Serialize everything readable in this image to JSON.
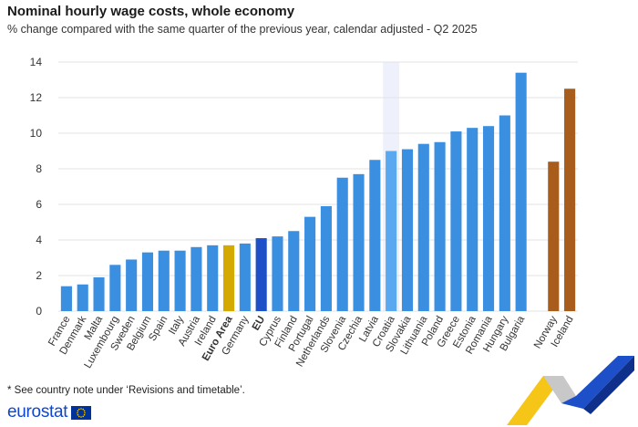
{
  "title": "Nominal hourly wage costs, whole economy",
  "subtitle": "% change compared with the same quarter of the previous year, calendar adjusted - Q2 2025",
  "note": "* See country note under ‘Revisions and timetable’.",
  "logo_text": "eurostat",
  "colors": {
    "country": "#3b8fe0",
    "highlight": "#5aa8ef",
    "euro_area": "#d4a900",
    "eu": "#1c4fc8",
    "efta": "#a95d1c",
    "grid": "#e3e3e3",
    "highlight_band": "#eef1fb"
  },
  "chart_data": {
    "type": "bar",
    "title": "Nominal hourly wage costs, whole economy",
    "subtitle": "% change compared with the same quarter of the previous year, calendar adjusted - Q2 2025",
    "xlabel": "",
    "ylabel": "",
    "ylim": [
      0,
      14
    ],
    "yticks": [
      0,
      2,
      4,
      6,
      8,
      10,
      12,
      14
    ],
    "grid": true,
    "categories": [
      "France",
      "Denmark",
      "Malta",
      "Luxembourg",
      "Sweden",
      "Belgium",
      "Spain",
      "Italy",
      "Austria",
      "Ireland",
      "Euro Area",
      "Germany",
      "EU",
      "Cyprus",
      "Finland",
      "Portugal",
      "Netherlands",
      "Slovenia",
      "Czechia",
      "Latvia",
      "Croatia",
      "Slovakia",
      "Lithuania",
      "Poland",
      "Greece",
      "Estonia",
      "Romania",
      "Hungary",
      "Bulgaria",
      "",
      "Norway",
      "Iceland"
    ],
    "values": [
      1.4,
      1.5,
      1.9,
      2.6,
      2.9,
      3.3,
      3.4,
      3.4,
      3.6,
      3.7,
      3.7,
      3.8,
      4.1,
      4.2,
      4.5,
      5.3,
      5.9,
      7.5,
      7.7,
      8.5,
      9.0,
      9.1,
      9.4,
      9.5,
      10.1,
      10.3,
      10.4,
      11.0,
      13.4,
      null,
      8.4,
      12.5
    ],
    "bar_groups": [
      "country",
      "country",
      "country",
      "country",
      "country",
      "country",
      "country",
      "country",
      "country",
      "country",
      "euro_area",
      "country",
      "eu",
      "country",
      "country",
      "country",
      "country",
      "country",
      "country",
      "country",
      "highlight",
      "country",
      "country",
      "country",
      "country",
      "country",
      "country",
      "country",
      "country",
      "gap",
      "efta",
      "efta"
    ],
    "bold_labels": [
      "Euro Area",
      "EU"
    ],
    "highlighted_category": "Croatia"
  }
}
